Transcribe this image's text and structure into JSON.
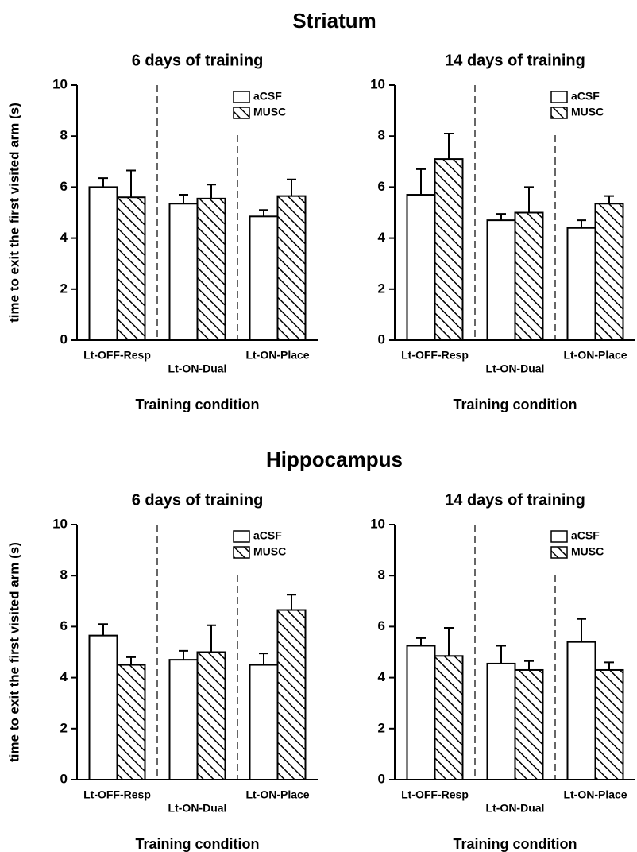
{
  "headings": [
    "Striatum",
    "Hippocampus"
  ],
  "chart_data": [
    {
      "type": "bar",
      "title": "6 days of training",
      "ylabel": "time to exit the first visited arm (s)",
      "xlabel": "Training condition",
      "categories": [
        "Lt-OFF-Resp",
        "Lt-ON-Dual",
        "Lt-ON-Place"
      ],
      "series": [
        {
          "name": "aCSF",
          "color": "#ffffff",
          "pattern": "none",
          "values": [
            6.0,
            5.35,
            4.85
          ],
          "errors": [
            0.35,
            0.35,
            0.25
          ]
        },
        {
          "name": "MUSC",
          "color": "#ffffff",
          "pattern": "hatch",
          "values": [
            5.6,
            5.55,
            5.65
          ],
          "errors": [
            1.05,
            0.55,
            0.65
          ]
        }
      ],
      "ylim": [
        0,
        10
      ],
      "yticks": [
        0,
        2,
        4,
        6,
        8,
        10
      ],
      "legend": "upper right"
    },
    {
      "type": "bar",
      "title": "14 days of training",
      "xlabel": "Training condition",
      "categories": [
        "Lt-OFF-Resp",
        "Lt-ON-Dual",
        "Lt-ON-Place"
      ],
      "series": [
        {
          "name": "aCSF",
          "color": "#ffffff",
          "pattern": "none",
          "values": [
            5.7,
            4.7,
            4.4
          ],
          "errors": [
            1.0,
            0.25,
            0.3
          ]
        },
        {
          "name": "MUSC",
          "color": "#ffffff",
          "pattern": "hatch",
          "values": [
            7.1,
            5.0,
            5.35
          ],
          "errors": [
            1.0,
            1.0,
            0.3
          ]
        }
      ],
      "ylim": [
        0,
        10
      ],
      "yticks": [
        0,
        2,
        4,
        6,
        8,
        10
      ],
      "legend": "upper right"
    },
    {
      "type": "bar",
      "title": "6 days of training",
      "ylabel": "time to exit the first visited arm (s)",
      "xlabel": "Training condition",
      "categories": [
        "Lt-OFF-Resp",
        "Lt-ON-Dual",
        "Lt-ON-Place"
      ],
      "series": [
        {
          "name": "aCSF",
          "color": "#ffffff",
          "pattern": "none",
          "values": [
            5.65,
            4.7,
            4.5
          ],
          "errors": [
            0.45,
            0.35,
            0.45
          ]
        },
        {
          "name": "MUSC",
          "color": "#ffffff",
          "pattern": "hatch",
          "values": [
            4.5,
            5.0,
            6.65
          ],
          "errors": [
            0.3,
            1.05,
            0.6
          ]
        }
      ],
      "ylim": [
        0,
        10
      ],
      "yticks": [
        0,
        2,
        4,
        6,
        8,
        10
      ],
      "legend": "upper right"
    },
    {
      "type": "bar",
      "title": "14 days of training",
      "xlabel": "Training condition",
      "categories": [
        "Lt-OFF-Resp",
        "Lt-ON-Dual",
        "Lt-ON-Place"
      ],
      "series": [
        {
          "name": "aCSF",
          "color": "#ffffff",
          "pattern": "none",
          "values": [
            5.25,
            4.55,
            5.4
          ],
          "errors": [
            0.3,
            0.7,
            0.9
          ]
        },
        {
          "name": "MUSC",
          "color": "#ffffff",
          "pattern": "hatch",
          "values": [
            4.85,
            4.3,
            4.3
          ],
          "errors": [
            1.1,
            0.35,
            0.3
          ]
        }
      ],
      "ylim": [
        0,
        10
      ],
      "yticks": [
        0,
        2,
        4,
        6,
        8,
        10
      ],
      "legend": "upper right"
    }
  ]
}
